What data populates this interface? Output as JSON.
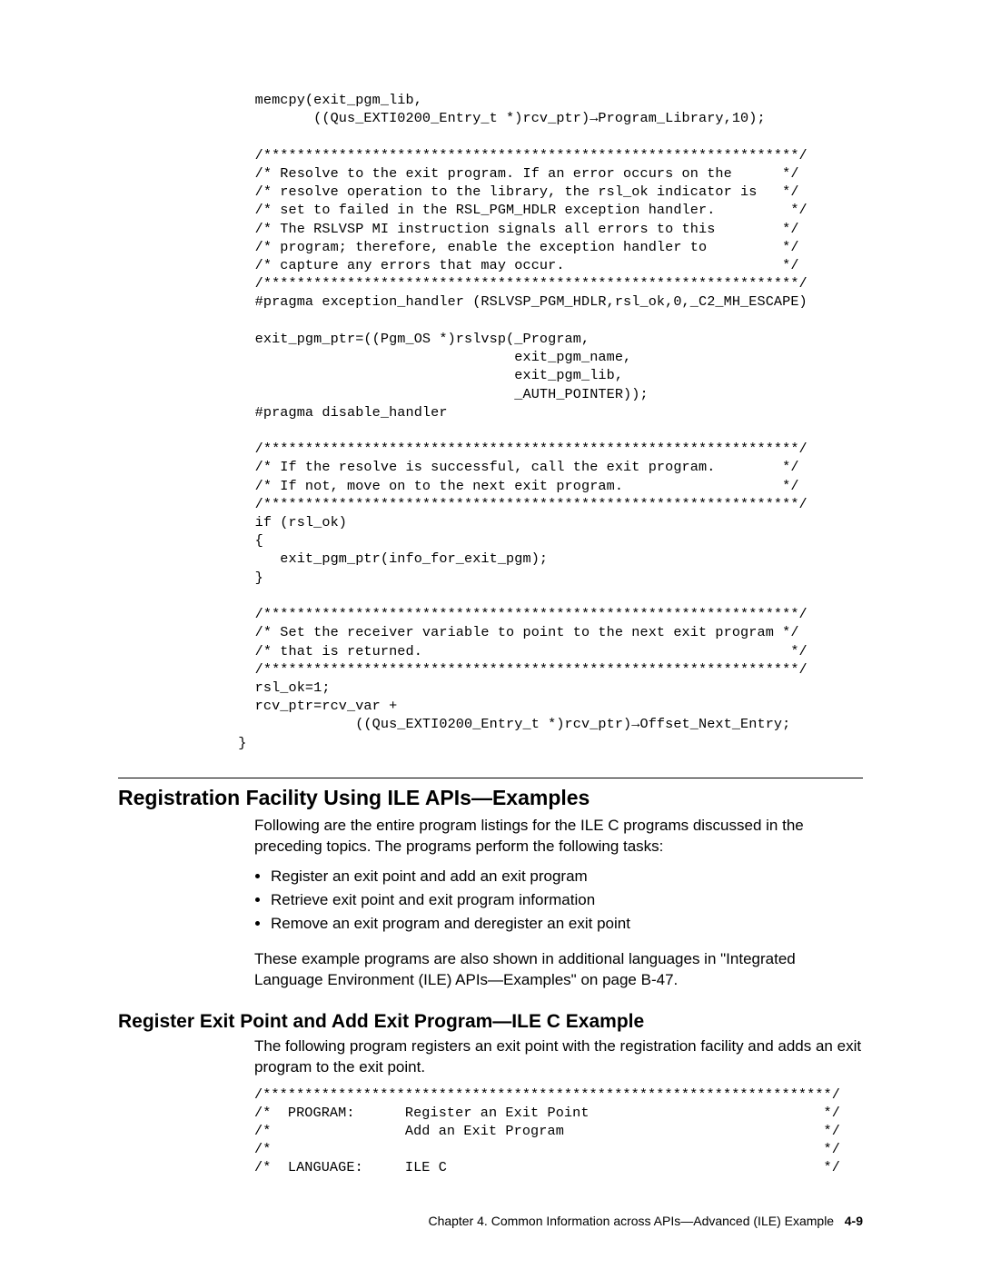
{
  "code1": "   memcpy(exit_pgm_lib,\n          ((Qus_EXTI0200_Entry_t *)rcv_ptr)→Program_Library,10);\n\n   /****************************************************************/\n   /* Resolve to the exit program. If an error occurs on the      */\n   /* resolve operation to the library, the rsl_ok indicator is   */\n   /* set to failed in the RSL_PGM_HDLR exception handler.         */\n   /* The RSLVSP MI instruction signals all errors to this        */\n   /* program; therefore, enable the exception handler to         */\n   /* capture any errors that may occur.                          */\n   /****************************************************************/\n   #pragma exception_handler (RSLVSP_PGM_HDLR,rsl_ok,0,_C2_MH_ESCAPE)\n\n   exit_pgm_ptr=((Pgm_OS *)rslvsp(_Program,\n                                  exit_pgm_name,\n                                  exit_pgm_lib,\n                                  _AUTH_POINTER));\n   #pragma disable_handler\n\n   /****************************************************************/\n   /* If the resolve is successful, call the exit program.        */\n   /* If not, move on to the next exit program.                   */\n   /****************************************************************/\n   if (rsl_ok)\n   {\n      exit_pgm_ptr(info_for_exit_pgm);\n   }\n\n   /****************************************************************/\n   /* Set the receiver variable to point to the next exit program */\n   /* that is returned.                                            */\n   /****************************************************************/\n   rsl_ok=1;\n   rcv_ptr=rcv_var +\n               ((Qus_EXTI0200_Entry_t *)rcv_ptr)→Offset_Next_Entry;\n }",
  "heading1": "Registration Facility Using ILE APIs—Examples",
  "para1": "Following are the entire program listings for the ILE C programs discussed in the preceding topics.  The programs perform the following tasks:",
  "bullets": [
    "Register an exit point and add an exit program",
    "Retrieve exit point and exit program information",
    "Remove an exit program and deregister an exit point"
  ],
  "para2": "These example programs are also shown in additional languages in \"Integrated Language Environment (ILE) APIs—Examples\" on page B-47.",
  "heading2": "Register Exit Point and Add Exit Program—ILE C Example",
  "para3": "The following program registers an exit point with the registration facility and adds an exit program to the exit point.",
  "code2": "/********************************************************************/\n/*  PROGRAM:      Register an Exit Point                            */\n/*                Add an Exit Program                               */\n/*                                                                  */\n/*  LANGUAGE:     ILE C                                             */",
  "footer_chapter": "Chapter 4.  Common Information across APIs—Advanced (ILE) Example",
  "footer_page": "4-9"
}
